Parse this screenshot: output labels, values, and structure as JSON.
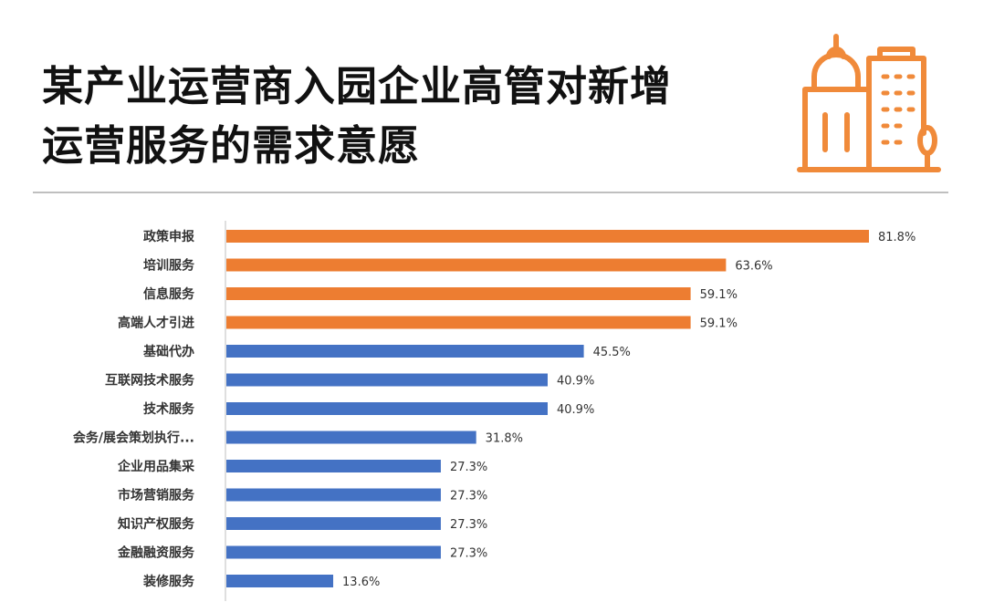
{
  "header": {
    "title_line1": "某产业运营商入园企业高管对新增",
    "title_line2": "运营服务的需求意愿"
  },
  "icon": {
    "name": "building-icon",
    "color": "#F08A3A"
  },
  "colors": {
    "highlight": "#ED7D31",
    "normal": "#4472C4",
    "axis": "#bfbfbf"
  },
  "chart_data": {
    "type": "bar",
    "orientation": "horizontal",
    "title": "某产业运营商入园企业高管对新增运营服务的需求意愿",
    "categories": [
      "政策申报",
      "培训服务",
      "信息服务",
      "高端人才引进",
      "基础代办",
      "互联网技术服务",
      "技术服务",
      "会务/展会策划执行...",
      "企业用品集采",
      "市场营销服务",
      "知识产权服务",
      "金融融资服务",
      "装修服务"
    ],
    "values": [
      81.8,
      63.6,
      59.1,
      59.1,
      45.5,
      40.9,
      40.9,
      31.8,
      27.3,
      27.3,
      27.3,
      27.3,
      13.6
    ],
    "value_labels": [
      "81.8%",
      "63.6%",
      "59.1%",
      "59.1%",
      "45.5%",
      "40.9%",
      "40.9%",
      "31.8%",
      "27.3%",
      "27.3%",
      "27.3%",
      "27.3%",
      "13.6%"
    ],
    "highlighted_count": 4,
    "xlim": [
      0,
      100
    ],
    "grid": false,
    "legend": "none"
  }
}
